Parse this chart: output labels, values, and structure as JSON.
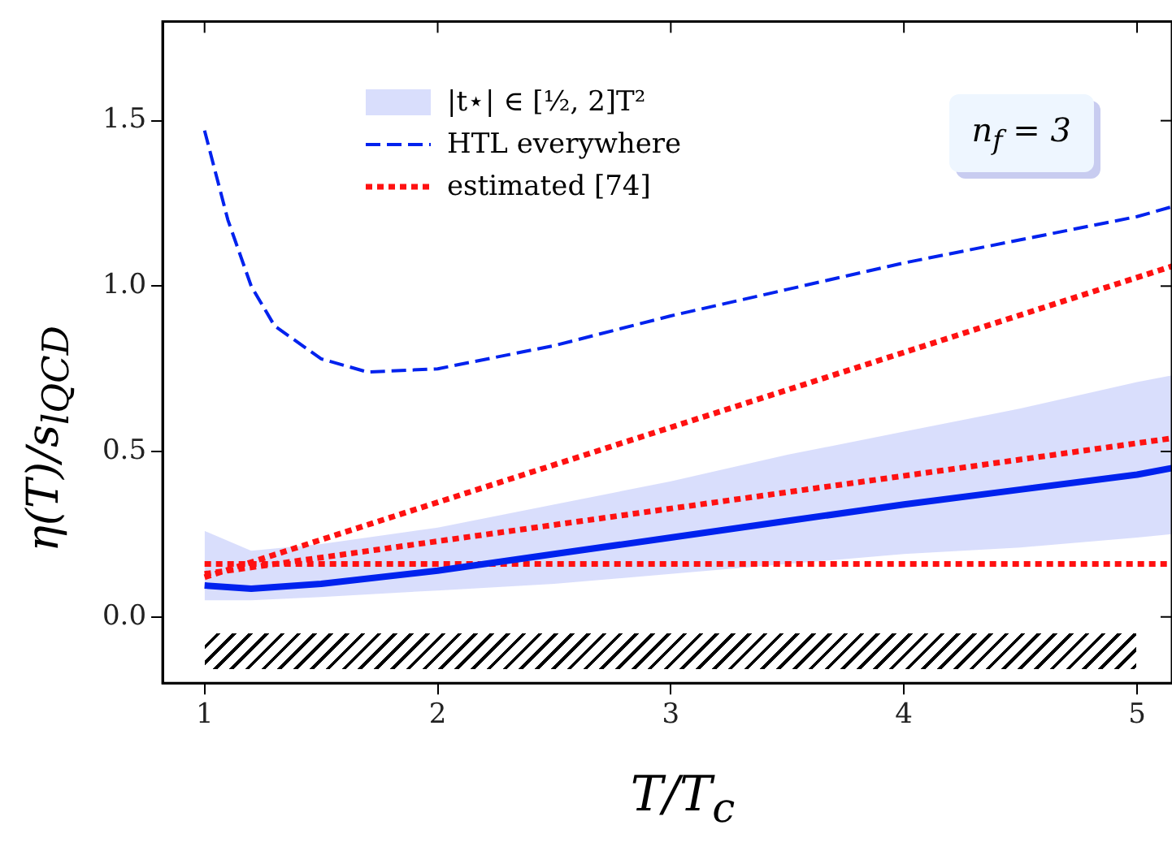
{
  "chart_data": {
    "type": "line",
    "xlabel": "T/T$_{c}$",
    "ylabel": "η(T)/s$_{lQCD}$",
    "xlim": [
      0.82,
      5.15
    ],
    "ylim": [
      -0.2,
      1.8
    ],
    "xticks": [
      1,
      2,
      3,
      4,
      5
    ],
    "yticks": [
      {
        "value": 0,
        "label": "0.0"
      },
      {
        "value": 0.5,
        "label": "0.5"
      },
      {
        "value": 1,
        "label": "1.0"
      },
      {
        "value": 1.5,
        "label": "1.5"
      }
    ],
    "grid": false,
    "legend": "top left",
    "annotations": [
      "n$_{f}$ = 3"
    ],
    "series": [
      {
        "name": "|t⋆| ∈ [½, 2]T²",
        "color": "#0022ee",
        "line_style": "solid",
        "x": [
          1,
          1.2,
          1.5,
          2,
          2.5,
          3,
          3.5,
          4,
          4.5,
          5,
          5.15
        ],
        "values": [
          0.095,
          0.085,
          0.1,
          0.14,
          0.19,
          0.24,
          0.29,
          0.34,
          0.385,
          0.43,
          0.45
        ],
        "lower": [
          0.05,
          0.05,
          0.06,
          0.08,
          0.1,
          0.13,
          0.16,
          0.19,
          0.21,
          0.24,
          0.25
        ],
        "upper": [
          0.26,
          0.2,
          0.22,
          0.27,
          0.34,
          0.41,
          0.49,
          0.56,
          0.63,
          0.71,
          0.73
        ]
      },
      {
        "name": "HTL everywhere",
        "color": "#0022ee",
        "line_style": "dashed",
        "x": [
          1,
          1.1,
          1.2,
          1.3,
          1.5,
          1.7,
          2,
          2.5,
          3,
          3.5,
          4,
          4.5,
          5,
          5.15
        ],
        "values": [
          1.47,
          1.2,
          1.0,
          0.88,
          0.78,
          0.74,
          0.75,
          0.82,
          0.91,
          0.99,
          1.07,
          1.14,
          1.21,
          1.24
        ]
      },
      {
        "name": "estimated [74]",
        "color": "#ff1111",
        "line_style": "dotted",
        "x": [
          1,
          5.15
        ],
        "values": [
          0.16,
          0.16
        ]
      },
      {
        "color": "#ff1111",
        "line_style": "dotted",
        "x": [
          1,
          5.15
        ],
        "values": [
          0.13,
          0.54
        ]
      },
      {
        "color": "#ff1111",
        "line_style": "dotted",
        "x": [
          1,
          5.15
        ],
        "values": [
          0.12,
          1.06
        ]
      }
    ]
  }
}
